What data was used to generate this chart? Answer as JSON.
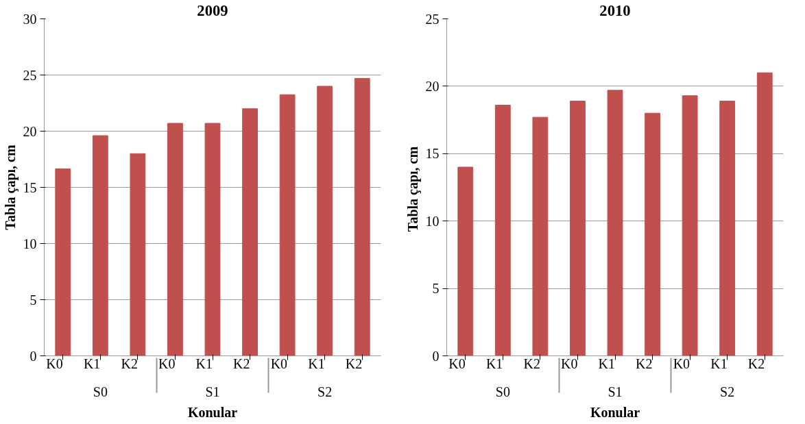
{
  "chart_data": [
    {
      "type": "bar",
      "title": "2009",
      "xlabel": "Konular",
      "ylabel": "Tabla çapı, cm",
      "categories": [
        "K0",
        "K1",
        "K2",
        "K0",
        "K1",
        "K2",
        "K0",
        "K1",
        "K2"
      ],
      "annotations": [
        "S0",
        "S1",
        "S2"
      ],
      "values": [
        16.65,
        19.6,
        18.0,
        20.7,
        20.7,
        22.0,
        23.25,
        24.0,
        24.7
      ],
      "color": "#c0504d",
      "ylim": [
        0,
        30
      ],
      "yticks": [
        0,
        5,
        10,
        15,
        20,
        25,
        30
      ],
      "grid": "y"
    },
    {
      "type": "bar",
      "title": "2010",
      "xlabel": "Konular",
      "ylabel": "Tabla çapı,  cm",
      "categories": [
        "K0",
        "K1",
        "K2",
        "K0",
        "K1",
        "K2",
        "K0",
        "K1",
        "K2"
      ],
      "annotations": [
        "S0",
        "S1",
        "S2"
      ],
      "values": [
        14.0,
        18.6,
        17.7,
        18.9,
        19.7,
        18.0,
        19.3,
        18.9,
        21.0
      ],
      "color": "#c0504d",
      "ylim": [
        0,
        25
      ],
      "yticks": [
        0,
        5,
        10,
        15,
        20,
        25
      ],
      "grid": "y"
    }
  ]
}
